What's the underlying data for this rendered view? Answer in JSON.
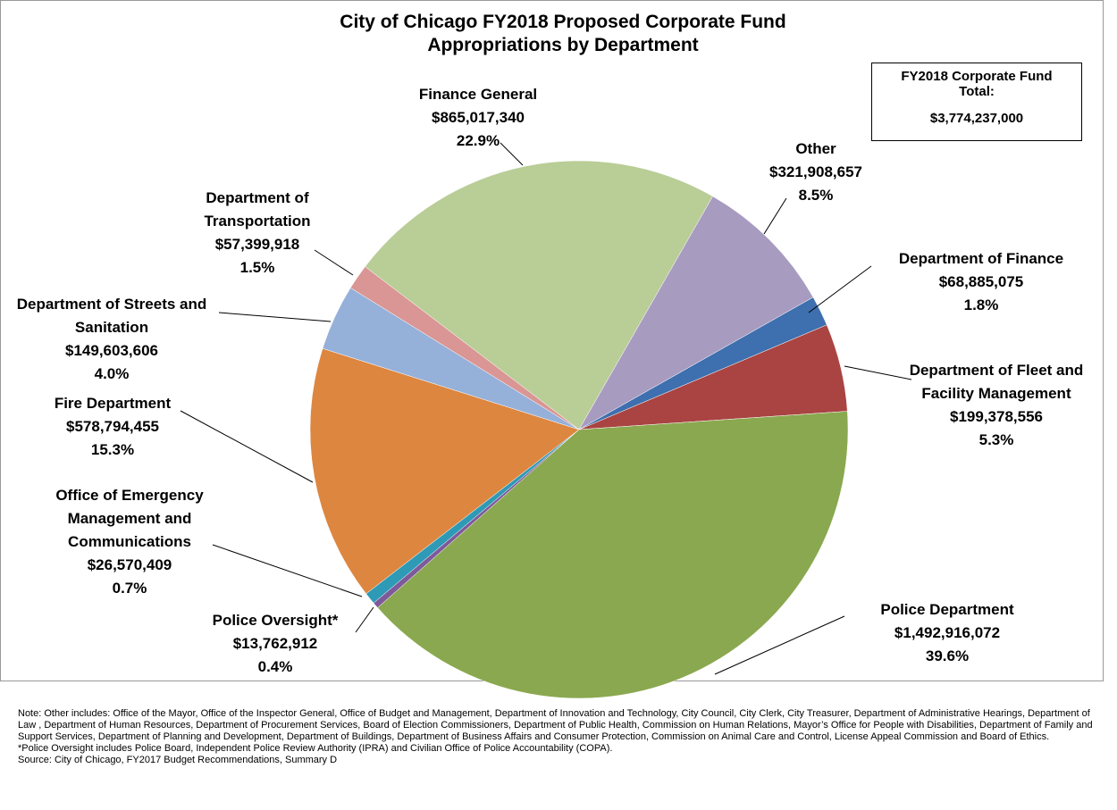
{
  "chart_data": {
    "type": "pie",
    "title": "City of Chicago FY2018 Proposed Corporate Fund Appropriations by Department",
    "categories": [
      "Finance General",
      "Other",
      "Department of Finance",
      "Department of Fleet and Facility Management",
      "Police Department",
      "Police Oversight*",
      "Office of Emergency Management and Communications",
      "Fire Department",
      "Department of Streets and Sanitation",
      "Department of Transportation"
    ],
    "values": [
      865017340,
      321908657,
      68885075,
      199378556,
      1492916072,
      13762912,
      26570409,
      578794455,
      149603606,
      57399918
    ],
    "value_labels": [
      "$865,017,340",
      "$321,908,657",
      "$68,885,075",
      "$199,378,556",
      "$1,492,916,072",
      "$13,762,912",
      "$26,570,409",
      "$578,794,455",
      "$149,603,606",
      "$57,399,918"
    ],
    "percent_labels": [
      "22.9%",
      "8.5%",
      "1.8%",
      "5.3%",
      "39.6%",
      "0.4%",
      "0.7%",
      "15.3%",
      "4.0%",
      "1.5%"
    ],
    "colors": [
      "#b9cd96",
      "#a89bc0",
      "#3e6fae",
      "#a94442",
      "#8aa84f",
      "#7d5a9a",
      "#2e9ab5",
      "#dd8640",
      "#95b0d9",
      "#d99694"
    ],
    "total_label": "FY2018 Corporate Fund Total:",
    "total_value": "$3,774,237,000",
    "notes": [
      "Note: Other includes: Office of the Mayor, Office of the Inspector General, Office of Budget and Management, Department of Innovation and Technology, City Council, City Clerk, City Treasurer, Department of Administrative Hearings, Department of Law , Department of Human Resources, Department of Procurement Services, Board of Election Commissioners, Department of Public Health, Commission on Human Relations, Mayor’s Office for People with Disabilities, Department of Family and Support Services, Department of Planning and Development, Department of Buildings, Department of Business Affairs and Consumer Protection, Commission on Animal Care and Control, License Appeal Commission and Board of Ethics.",
      "*Police Oversight includes Police Board, Independent Police Review Authority (IPRA) and Civilian Office of Police Accountability (COPA).",
      "Source: City of Chicago, FY2017 Budget Recommendations, Summary D"
    ]
  }
}
